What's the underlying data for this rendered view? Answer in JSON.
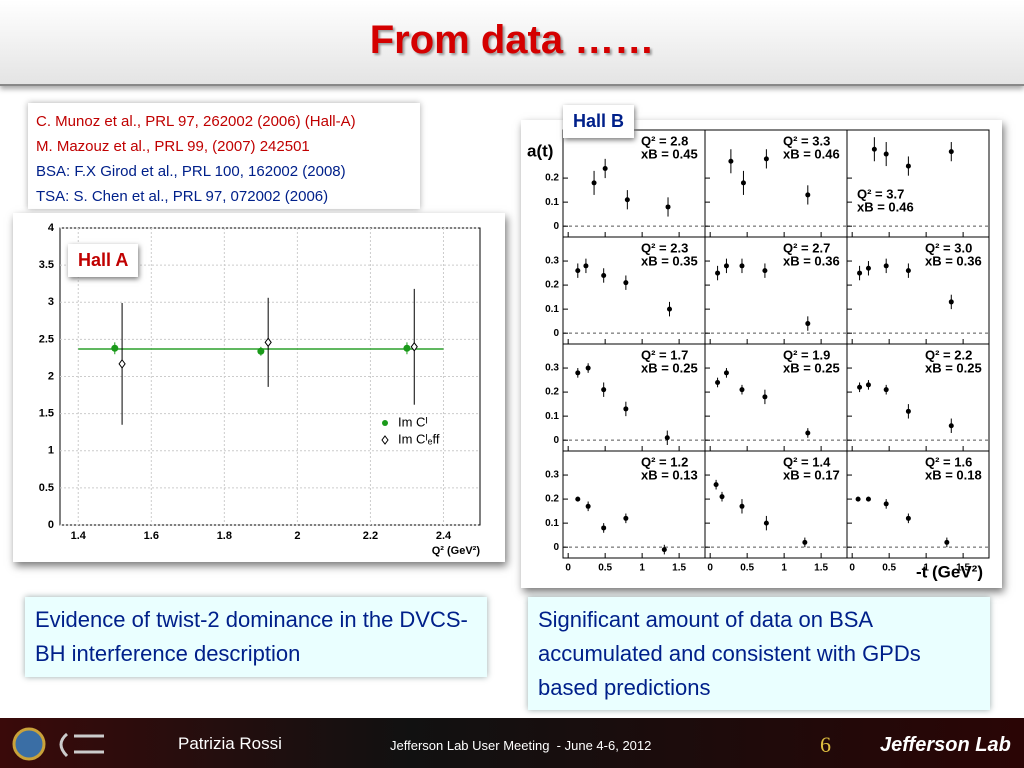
{
  "header": {
    "title": "From data ……"
  },
  "references": [
    "C. Munoz et al., PRL 97, 262002 (2006) (Hall-A)",
    "M. Mazouz et al., PRL 99, (2007) 242501",
    "BSA: F.X Girod et al., PRL 100, 162002 (2008)",
    "TSA: S. Chen et al., PRL 97, 072002 (2006)"
  ],
  "hall_a": {
    "type": "scatter",
    "label": "Hall A",
    "xlabel": "Q² (GeV²)",
    "xlim": [
      1.35,
      2.5
    ],
    "ylim": [
      0,
      4
    ],
    "xticks": [
      1.4,
      1.6,
      1.8,
      2,
      2.2,
      2.4
    ],
    "yticks": [
      0,
      0.5,
      1,
      1.5,
      2,
      2.5,
      3,
      3.5,
      4
    ],
    "grid": true,
    "fit": {
      "value": 2.37,
      "color": "#2ca02c"
    },
    "series": [
      {
        "name": "Im Cᴵ",
        "color": "#1a9a1a",
        "marker": "circle",
        "x": [
          1.5,
          1.9,
          2.3
        ],
        "values": [
          2.38,
          2.34,
          2.38
        ],
        "errors": [
          0.08,
          0.06,
          0.08
        ]
      },
      {
        "name": "Im Cᴵₑff",
        "color": "#000000",
        "marker": "diamond",
        "x": [
          1.52,
          1.92,
          2.32
        ],
        "values": [
          2.17,
          2.46,
          2.4
        ],
        "errors": [
          0.82,
          0.6,
          0.78
        ]
      }
    ]
  },
  "hall_b": {
    "type": "scatter",
    "label": "Hall B",
    "ylabel": "a(t)",
    "xlabel": "-t (GeV²)",
    "xlim": [
      -0.07,
      1.85
    ],
    "ylim": [
      -0.045,
      0.4
    ],
    "xticks": [
      0,
      0.5,
      1,
      1.5
    ],
    "row_yticks": [
      [
        0,
        0.1,
        0.2
      ],
      [
        0,
        0.1,
        0.2,
        0.3
      ],
      [
        0,
        0.1,
        0.2,
        0.3
      ],
      [
        0,
        0.1,
        0.2,
        0.3
      ]
    ],
    "panels": [
      {
        "q2": "Q² = 2.8",
        "xb": "xB = 0.45",
        "x": [
          0.35,
          0.5,
          0.8,
          1.35
        ],
        "values": [
          0.18,
          0.24,
          0.11,
          0.08
        ],
        "errors": [
          0.05,
          0.04,
          0.04,
          0.04
        ]
      },
      {
        "q2": "Q² = 3.3",
        "xb": "xB = 0.46",
        "x": [
          0.28,
          0.45,
          0.76,
          1.32
        ],
        "values": [
          0.27,
          0.18,
          0.28,
          0.13
        ],
        "errors": [
          0.05,
          0.05,
          0.04,
          0.04
        ]
      },
      {
        "q2": "Q² = 3.7",
        "xb": "xB = 0.46",
        "x": [
          0.3,
          0.46,
          0.76,
          1.34
        ],
        "values": [
          0.32,
          0.3,
          0.25,
          0.31
        ],
        "errors": [
          0.05,
          0.05,
          0.04,
          0.04
        ]
      },
      {
        "q2": "Q² = 2.3",
        "xb": "xB = 0.35",
        "x": [
          0.13,
          0.24,
          0.48,
          0.78,
          1.37
        ],
        "values": [
          0.26,
          0.28,
          0.24,
          0.21,
          0.1
        ],
        "errors": [
          0.03,
          0.03,
          0.03,
          0.03,
          0.03
        ]
      },
      {
        "q2": "Q² = 2.7",
        "xb": "xB = 0.36",
        "x": [
          0.1,
          0.22,
          0.43,
          0.74,
          1.32
        ],
        "values": [
          0.25,
          0.28,
          0.28,
          0.26,
          0.04
        ],
        "errors": [
          0.03,
          0.03,
          0.03,
          0.03,
          0.03
        ]
      },
      {
        "q2": "Q² = 3.0",
        "xb": "xB = 0.36",
        "x": [
          0.1,
          0.22,
          0.46,
          0.76,
          1.34
        ],
        "values": [
          0.25,
          0.27,
          0.28,
          0.26,
          0.13
        ],
        "errors": [
          0.03,
          0.03,
          0.03,
          0.03,
          0.03
        ]
      },
      {
        "q2": "Q² = 1.7",
        "xb": "xB = 0.25",
        "x": [
          0.13,
          0.27,
          0.48,
          0.78,
          1.34
        ],
        "values": [
          0.28,
          0.3,
          0.21,
          0.13,
          0.01
        ],
        "errors": [
          0.02,
          0.02,
          0.03,
          0.03,
          0.03
        ]
      },
      {
        "q2": "Q² = 1.9",
        "xb": "xB = 0.25",
        "x": [
          0.1,
          0.22,
          0.43,
          0.74,
          1.32
        ],
        "values": [
          0.24,
          0.28,
          0.21,
          0.18,
          0.03
        ],
        "errors": [
          0.02,
          0.02,
          0.02,
          0.03,
          0.02
        ]
      },
      {
        "q2": "Q² = 2.2",
        "xb": "xB = 0.25",
        "x": [
          0.1,
          0.22,
          0.46,
          0.76,
          1.34
        ],
        "values": [
          0.22,
          0.23,
          0.21,
          0.12,
          0.06
        ],
        "errors": [
          0.02,
          0.02,
          0.02,
          0.03,
          0.03
        ]
      },
      {
        "q2": "Q² = 1.2",
        "xb": "xB = 0.13",
        "x": [
          0.13,
          0.27,
          0.48,
          0.78,
          1.3
        ],
        "values": [
          0.2,
          0.17,
          0.08,
          0.12,
          -0.01
        ],
        "errors": [
          0.01,
          0.02,
          0.02,
          0.02,
          0.02
        ]
      },
      {
        "q2": "Q² = 1.4",
        "xb": "xB = 0.17",
        "x": [
          0.08,
          0.16,
          0.43,
          0.76,
          1.28
        ],
        "values": [
          0.26,
          0.21,
          0.17,
          0.1,
          0.02
        ],
        "errors": [
          0.02,
          0.02,
          0.03,
          0.03,
          0.02
        ]
      },
      {
        "q2": "Q² = 1.6",
        "xb": "xB = 0.18",
        "x": [
          0.08,
          0.22,
          0.46,
          0.76,
          1.28
        ],
        "values": [
          0.2,
          0.2,
          0.18,
          0.12,
          0.02
        ],
        "errors": [
          0.01,
          0.01,
          0.02,
          0.02,
          0.02
        ]
      }
    ]
  },
  "captions": [
    "Evidence of twist-2 dominance in the DVCS-BH interference description",
    "Significant amount of data on BSA accumulated and consistent with GPDs based predictions"
  ],
  "footer": {
    "author": "Patrizia Rossi",
    "event": "Jefferson Lab User Meeting  - June 4-6, 2012",
    "page": "6",
    "logo": "Jefferson Lab"
  }
}
